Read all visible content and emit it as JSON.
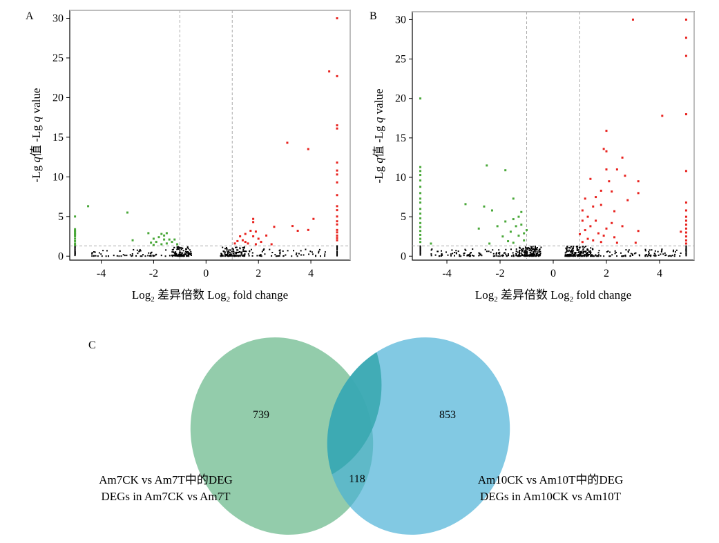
{
  "panels": {
    "A": {
      "letter": "A"
    },
    "B": {
      "letter": "B"
    },
    "C": {
      "letter": "C"
    }
  },
  "chart_data": [
    {
      "type": "scatter",
      "panel": "A",
      "ylabel": "-Lg q值 -Lg q value",
      "xlabel": "Log2 差异倍数 Log2 fold change",
      "xlim": [
        -5.2,
        5.5
      ],
      "ylim": [
        -0.5,
        31
      ],
      "xticks": [
        "-4",
        "-2",
        "0",
        "2",
        "4"
      ],
      "yticks": [
        "0",
        "5",
        "10",
        "15",
        "20",
        "25",
        "30"
      ],
      "thresholds": {
        "x": [
          -1,
          1
        ],
        "y": 1.3
      },
      "colors": {
        "up": "#e8221e",
        "down": "#4aa83a",
        "ns": "#000000"
      },
      "up": [
        [
          5,
          30
        ],
        [
          4.7,
          23.3
        ],
        [
          5,
          22.7
        ],
        [
          5,
          16.5
        ],
        [
          5,
          16.1
        ],
        [
          3.1,
          14.3
        ],
        [
          3.9,
          13.5
        ],
        [
          5,
          11.8
        ],
        [
          5,
          10.8
        ],
        [
          5,
          10.3
        ],
        [
          5,
          9.3
        ],
        [
          5,
          7.7
        ],
        [
          5,
          6.3
        ],
        [
          5,
          5.8
        ],
        [
          4.1,
          4.7
        ],
        [
          5,
          5
        ],
        [
          1.8,
          4.7
        ],
        [
          1.8,
          4.3
        ],
        [
          5,
          4.4
        ],
        [
          2.6,
          3.7
        ],
        [
          3.3,
          3.8
        ],
        [
          5,
          4
        ],
        [
          3.5,
          3.2
        ],
        [
          3.9,
          3.3
        ],
        [
          1.9,
          3.1
        ],
        [
          1.7,
          3.2
        ],
        [
          1.5,
          2.8
        ],
        [
          1.3,
          2.5
        ],
        [
          1.8,
          2.5
        ],
        [
          2,
          2.2
        ],
        [
          2.3,
          2.6
        ],
        [
          5,
          3.3
        ],
        [
          5,
          3
        ],
        [
          5,
          2.6
        ],
        [
          5,
          2.3
        ],
        [
          5,
          2
        ],
        [
          1.2,
          1.9
        ],
        [
          1.5,
          1.8
        ],
        [
          2.1,
          1.8
        ],
        [
          1.4,
          2
        ],
        [
          1.9,
          1.5
        ],
        [
          1.1,
          1.6
        ],
        [
          2.5,
          1.5
        ],
        [
          1.6,
          1.6
        ]
      ],
      "down": [
        [
          -4.5,
          6.3
        ],
        [
          -3,
          5.5
        ],
        [
          -5,
          5
        ],
        [
          -5,
          3.4
        ],
        [
          -5,
          3.1
        ],
        [
          -5,
          2.8
        ],
        [
          -5,
          2.5
        ],
        [
          -5,
          2.2
        ],
        [
          -5,
          1.9
        ],
        [
          -5,
          1.6
        ],
        [
          -5,
          1.4
        ],
        [
          -5,
          3.2
        ],
        [
          -5,
          2.9
        ],
        [
          -5,
          2.7
        ],
        [
          -2.2,
          2.9
        ],
        [
          -1.5,
          2.9
        ],
        [
          -1.6,
          2.6
        ],
        [
          -1.7,
          2.8
        ],
        [
          -1.8,
          2.4
        ],
        [
          -2,
          2.2
        ],
        [
          -1.4,
          2.1
        ],
        [
          -1.2,
          2.1
        ],
        [
          -2.8,
          2
        ],
        [
          -1.9,
          1.8
        ],
        [
          -2.1,
          1.7
        ],
        [
          -1.3,
          1.8
        ],
        [
          -1.5,
          1.6
        ],
        [
          -1.1,
          1.5
        ],
        [
          -1.7,
          1.5
        ],
        [
          -2,
          1.4
        ],
        [
          -1.6,
          2.1
        ]
      ],
      "ns_bands": [
        {
          "x": [
            -5,
            -5
          ],
          "y": [
            0.05,
            1.3
          ],
          "n": 25
        },
        {
          "x": [
            5,
            5
          ],
          "y": [
            0.05,
            1.3
          ],
          "n": 25
        },
        {
          "x": [
            -1.3,
            -0.55
          ],
          "y": [
            0,
            1.2
          ],
          "n": 110
        },
        {
          "x": [
            0.55,
            1.5
          ],
          "y": [
            0,
            1.2
          ],
          "n": 120
        },
        {
          "x": [
            -4.5,
            -1.3
          ],
          "y": [
            0,
            0.9
          ],
          "n": 60
        },
        {
          "x": [
            1.5,
            4.6
          ],
          "y": [
            0,
            0.9
          ],
          "n": 60
        }
      ]
    },
    {
      "type": "scatter",
      "panel": "B",
      "ylabel": "-Lg q值 -Lg q value",
      "xlabel": "Log2 差异倍数 Log2 fold change",
      "xlim": [
        -5.3,
        5.3
      ],
      "ylim": [
        -0.5,
        31
      ],
      "xticks": [
        "-4",
        "-2",
        "0",
        "2",
        "4"
      ],
      "yticks": [
        "0",
        "5",
        "10",
        "15",
        "20",
        "25",
        "30"
      ],
      "thresholds": {
        "x": [
          -1,
          1
        ],
        "y": 1.3
      },
      "colors": {
        "up": "#e8221e",
        "down": "#4aa83a",
        "ns": "#000000"
      },
      "up": [
        [
          3,
          30
        ],
        [
          5,
          30
        ],
        [
          5,
          27.7
        ],
        [
          5,
          25.4
        ],
        [
          4.1,
          17.8
        ],
        [
          5,
          18
        ],
        [
          2,
          15.9
        ],
        [
          1.9,
          13.6
        ],
        [
          2,
          13.3
        ],
        [
          2.6,
          12.5
        ],
        [
          2,
          11
        ],
        [
          2.4,
          11
        ],
        [
          2.7,
          10.2
        ],
        [
          1.4,
          9.8
        ],
        [
          2.1,
          9.5
        ],
        [
          3.2,
          9.5
        ],
        [
          5,
          10.8
        ],
        [
          1.8,
          8.3
        ],
        [
          2.2,
          8.2
        ],
        [
          3.2,
          8
        ],
        [
          1.6,
          7.5
        ],
        [
          1.2,
          7.3
        ],
        [
          2.8,
          7.1
        ],
        [
          1.8,
          6.5
        ],
        [
          1.5,
          6.3
        ],
        [
          1.1,
          5.8
        ],
        [
          2.3,
          5.7
        ],
        [
          5,
          6.8
        ],
        [
          5,
          5.8
        ],
        [
          5,
          5
        ],
        [
          1.3,
          5
        ],
        [
          1.6,
          4.5
        ],
        [
          2.2,
          4.2
        ],
        [
          1.1,
          4.5
        ],
        [
          1.4,
          3.8
        ],
        [
          2,
          3.5
        ],
        [
          2.6,
          3.8
        ],
        [
          3.2,
          3.2
        ],
        [
          1.2,
          3.3
        ],
        [
          1.7,
          2.9
        ],
        [
          4.8,
          3.1
        ],
        [
          1.9,
          2.6
        ],
        [
          1,
          2.8
        ],
        [
          1.3,
          2.2
        ],
        [
          2.3,
          2.4
        ],
        [
          1.5,
          2
        ],
        [
          1.1,
          1.8
        ],
        [
          2.4,
          1.7
        ],
        [
          1.8,
          1.8
        ],
        [
          3.1,
          1.7
        ],
        [
          5,
          4.5
        ],
        [
          5,
          4
        ],
        [
          5,
          3.5
        ],
        [
          5,
          3
        ],
        [
          5,
          2.5
        ],
        [
          5,
          2
        ],
        [
          5,
          1.6
        ]
      ],
      "down": [
        [
          -5,
          20
        ],
        [
          -5,
          11.3
        ],
        [
          -5,
          10.8
        ],
        [
          -5,
          10.3
        ],
        [
          -5,
          9.6
        ],
        [
          -5,
          8.8
        ],
        [
          -5,
          8
        ],
        [
          -5,
          7.3
        ],
        [
          -5,
          6.8
        ],
        [
          -5,
          6
        ],
        [
          -5,
          5.4
        ],
        [
          -5,
          4.8
        ],
        [
          -5,
          4.2
        ],
        [
          -5,
          3.7
        ],
        [
          -5,
          3.2
        ],
        [
          -5,
          2.7
        ],
        [
          -5,
          2.2
        ],
        [
          -5,
          1.8
        ],
        [
          -2.5,
          11.5
        ],
        [
          -1.8,
          10.9
        ],
        [
          -3.3,
          6.6
        ],
        [
          -2.6,
          6.3
        ],
        [
          -2.3,
          5.8
        ],
        [
          -1.5,
          7.3
        ],
        [
          -1.2,
          5.6
        ],
        [
          -1.3,
          5
        ],
        [
          -1.5,
          4.7
        ],
        [
          -1.8,
          4.4
        ],
        [
          -2.1,
          3.8
        ],
        [
          -1.4,
          3.8
        ],
        [
          -1.2,
          4
        ],
        [
          -1,
          3.3
        ],
        [
          -1.1,
          2.9
        ],
        [
          -2.8,
          3.5
        ],
        [
          -1.6,
          3.1
        ],
        [
          -1.9,
          2.5
        ],
        [
          -1.3,
          2.6
        ],
        [
          -1.7,
          1.9
        ],
        [
          -2.4,
          1.6
        ],
        [
          -1.1,
          2
        ],
        [
          -1.5,
          1.7
        ],
        [
          -4.6,
          1.6
        ]
      ],
      "ns_bands": [
        {
          "x": [
            -5,
            -5
          ],
          "y": [
            0.05,
            1.3
          ],
          "n": 25
        },
        {
          "x": [
            5,
            5
          ],
          "y": [
            0.05,
            1.3
          ],
          "n": 25
        },
        {
          "x": [
            -1.4,
            -0.45
          ],
          "y": [
            0,
            1.25
          ],
          "n": 160
        },
        {
          "x": [
            0.45,
            1.5
          ],
          "y": [
            0,
            1.25
          ],
          "n": 170
        },
        {
          "x": [
            -4.7,
            -1.4
          ],
          "y": [
            0,
            0.9
          ],
          "n": 90
        },
        {
          "x": [
            1.5,
            4.8
          ],
          "y": [
            0,
            0.9
          ],
          "n": 90
        }
      ]
    }
  ],
  "venn": {
    "left_count": "739",
    "right_count": "853",
    "overlap_count": "118",
    "left_label_line1": "Am7CK vs Am7T中的DEG",
    "left_label_line2": "DEGs in Am7CK vs Am7T",
    "right_label_line1": "Am10CK vs Am10T中的DEG",
    "right_label_line2": "DEGs in Am10CK vs Am10T",
    "left_color": "#6ab98a",
    "right_color": "#47afd6",
    "overlap_color": "#3aa9b0"
  }
}
